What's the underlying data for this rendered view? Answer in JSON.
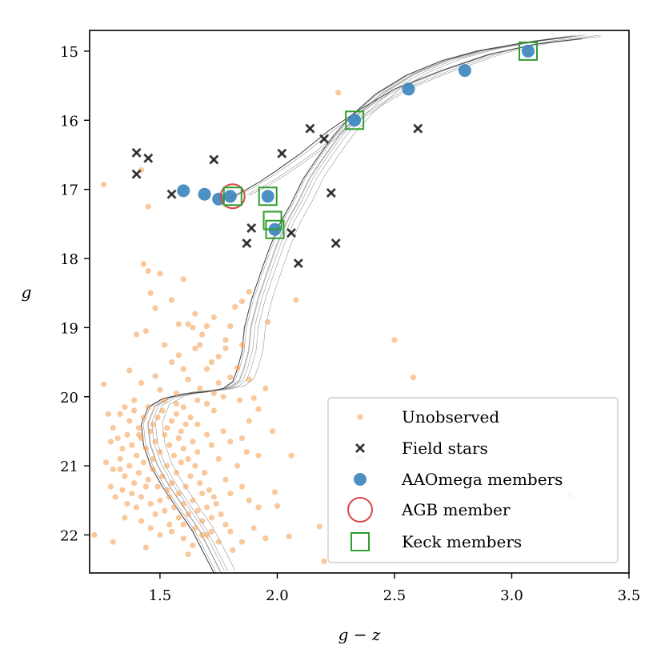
{
  "chart_data": {
    "type": "scatter",
    "title": "",
    "xlabel": "g − z",
    "ylabel": "g",
    "xlim": [
      1.2,
      3.5
    ],
    "ylim": [
      22.55,
      14.7
    ],
    "xticks": [
      1.5,
      2.0,
      2.5,
      3.0,
      3.5
    ],
    "yticks": [
      15,
      16,
      17,
      18,
      19,
      20,
      21,
      22
    ],
    "xtick_labels": [
      "1.5",
      "2.0",
      "2.5",
      "3.0",
      "3.5"
    ],
    "ytick_labels": [
      "15",
      "16",
      "17",
      "18",
      "19",
      "20",
      "21",
      "22"
    ],
    "grid": false,
    "legend_position": "lower-right",
    "colors": {
      "unobserved": "#f5a35c",
      "field": "#222222",
      "aaomega": "#3a84bd",
      "agb": "#d9464a",
      "keck": "#2e9e2e",
      "isochrone": "#444444"
    },
    "series": [
      {
        "name": "Unobserved",
        "marker": "dot",
        "points": [
          [
            1.26,
            16.93
          ],
          [
            1.42,
            16.72
          ],
          [
            1.45,
            17.25
          ],
          [
            1.43,
            18.08
          ],
          [
            1.45,
            18.18
          ],
          [
            1.46,
            18.5
          ],
          [
            1.5,
            18.22
          ],
          [
            1.55,
            18.6
          ],
          [
            1.6,
            18.3
          ],
          [
            1.62,
            18.95
          ],
          [
            1.65,
            18.8
          ],
          [
            1.7,
            18.98
          ],
          [
            1.73,
            18.85
          ],
          [
            1.8,
            18.98
          ],
          [
            1.82,
            18.7
          ],
          [
            1.85,
            18.62
          ],
          [
            1.88,
            18.48
          ],
          [
            1.96,
            18.92
          ],
          [
            2.08,
            18.6
          ],
          [
            2.26,
            15.6
          ],
          [
            1.4,
            19.1
          ],
          [
            1.44,
            19.05
          ],
          [
            1.52,
            19.25
          ],
          [
            1.58,
            19.4
          ],
          [
            1.65,
            19.3
          ],
          [
            1.72,
            19.5
          ],
          [
            1.78,
            19.3
          ],
          [
            1.85,
            19.25
          ],
          [
            1.78,
            19.18
          ],
          [
            1.68,
            19.1
          ],
          [
            1.7,
            19.6
          ],
          [
            1.6,
            19.6
          ],
          [
            1.55,
            19.5
          ],
          [
            1.48,
            19.7
          ],
          [
            1.42,
            19.8
          ],
          [
            1.37,
            19.62
          ],
          [
            1.5,
            19.9
          ],
          [
            1.62,
            19.75
          ],
          [
            1.75,
            19.8
          ],
          [
            1.88,
            19.75
          ],
          [
            1.9,
            20.02
          ],
          [
            1.95,
            19.88
          ],
          [
            1.92,
            20.18
          ],
          [
            1.98,
            20.5
          ],
          [
            2.5,
            19.18
          ],
          [
            2.58,
            19.72
          ],
          [
            1.26,
            19.82
          ],
          [
            1.57,
            19.95
          ],
          [
            1.67,
            19.88
          ],
          [
            1.77,
            20.0
          ],
          [
            1.84,
            20.05
          ],
          [
            1.88,
            20.35
          ],
          [
            1.73,
            20.2
          ],
          [
            1.7,
            20.1
          ],
          [
            1.28,
            20.25
          ],
          [
            1.3,
            20.45
          ],
          [
            1.33,
            20.25
          ],
          [
            1.35,
            20.15
          ],
          [
            1.37,
            20.35
          ],
          [
            1.39,
            20.2
          ],
          [
            1.41,
            20.45
          ],
          [
            1.43,
            20.3
          ],
          [
            1.45,
            20.15
          ],
          [
            1.47,
            20.4
          ],
          [
            1.49,
            20.3
          ],
          [
            1.51,
            20.2
          ],
          [
            1.53,
            20.45
          ],
          [
            1.55,
            20.35
          ],
          [
            1.57,
            20.25
          ],
          [
            1.59,
            20.5
          ],
          [
            1.61,
            20.4
          ],
          [
            1.63,
            20.3
          ],
          [
            1.32,
            20.6
          ],
          [
            1.34,
            20.75
          ],
          [
            1.36,
            20.55
          ],
          [
            1.38,
            20.7
          ],
          [
            1.4,
            20.85
          ],
          [
            1.42,
            20.6
          ],
          [
            1.44,
            20.75
          ],
          [
            1.46,
            20.5
          ],
          [
            1.48,
            20.65
          ],
          [
            1.5,
            20.8
          ],
          [
            1.52,
            20.55
          ],
          [
            1.54,
            20.7
          ],
          [
            1.56,
            20.85
          ],
          [
            1.58,
            20.6
          ],
          [
            1.6,
            20.75
          ],
          [
            1.62,
            20.9
          ],
          [
            1.64,
            20.65
          ],
          [
            1.66,
            20.8
          ],
          [
            1.27,
            20.95
          ],
          [
            1.3,
            21.05
          ],
          [
            1.33,
            20.9
          ],
          [
            1.35,
            21.15
          ],
          [
            1.37,
            21.0
          ],
          [
            1.39,
            21.25
          ],
          [
            1.41,
            21.1
          ],
          [
            1.43,
            20.95
          ],
          [
            1.45,
            21.2
          ],
          [
            1.47,
            21.05
          ],
          [
            1.49,
            21.3
          ],
          [
            1.51,
            21.15
          ],
          [
            1.53,
            21.0
          ],
          [
            1.55,
            21.25
          ],
          [
            1.57,
            21.1
          ],
          [
            1.59,
            20.95
          ],
          [
            1.61,
            21.3
          ],
          [
            1.63,
            21.15
          ],
          [
            1.65,
            21.0
          ],
          [
            1.67,
            21.25
          ],
          [
            1.69,
            21.1
          ],
          [
            1.71,
            21.35
          ],
          [
            1.29,
            21.3
          ],
          [
            1.31,
            21.45
          ],
          [
            1.34,
            21.35
          ],
          [
            1.36,
            21.55
          ],
          [
            1.38,
            21.4
          ],
          [
            1.4,
            21.6
          ],
          [
            1.42,
            21.45
          ],
          [
            1.44,
            21.3
          ],
          [
            1.46,
            21.55
          ],
          [
            1.48,
            21.7
          ],
          [
            1.5,
            21.5
          ],
          [
            1.52,
            21.65
          ],
          [
            1.54,
            21.45
          ],
          [
            1.56,
            21.6
          ],
          [
            1.58,
            21.75
          ],
          [
            1.6,
            21.55
          ],
          [
            1.62,
            21.7
          ],
          [
            1.64,
            21.5
          ],
          [
            1.66,
            21.65
          ],
          [
            1.68,
            21.8
          ],
          [
            1.7,
            21.6
          ],
          [
            1.72,
            21.75
          ],
          [
            1.74,
            21.55
          ],
          [
            1.76,
            21.7
          ],
          [
            1.78,
            21.85
          ],
          [
            1.42,
            21.8
          ],
          [
            1.46,
            21.9
          ],
          [
            1.5,
            22.0
          ],
          [
            1.55,
            21.95
          ],
          [
            1.6,
            22.05
          ],
          [
            1.65,
            21.9
          ],
          [
            1.7,
            22.0
          ],
          [
            1.75,
            22.1
          ],
          [
            1.8,
            21.95
          ],
          [
            1.85,
            22.1
          ],
          [
            1.9,
            21.9
          ],
          [
            1.95,
            22.05
          ],
          [
            1.22,
            22.0
          ],
          [
            1.3,
            22.1
          ],
          [
            1.44,
            22.18
          ],
          [
            1.62,
            22.28
          ],
          [
            1.81,
            22.22
          ],
          [
            2.0,
            21.58
          ],
          [
            1.99,
            21.38
          ],
          [
            2.06,
            20.85
          ],
          [
            2.05,
            22.02
          ],
          [
            2.18,
            21.88
          ],
          [
            2.2,
            22.38
          ],
          [
            2.35,
            20.88
          ],
          [
            2.65,
            20.75
          ],
          [
            2.73,
            20.8
          ],
          [
            2.85,
            20.8
          ],
          [
            3.25,
            21.42
          ],
          [
            1.77,
            20.5
          ],
          [
            1.8,
            20.65
          ],
          [
            1.75,
            20.9
          ],
          [
            1.83,
            21.0
          ],
          [
            1.87,
            20.8
          ],
          [
            1.78,
            21.2
          ],
          [
            1.85,
            21.3
          ],
          [
            1.88,
            21.5
          ],
          [
            1.92,
            21.6
          ],
          [
            1.85,
            20.6
          ],
          [
            1.92,
            20.85
          ],
          [
            1.8,
            21.4
          ],
          [
            1.73,
            21.45
          ],
          [
            1.68,
            21.4
          ],
          [
            1.66,
            20.4
          ],
          [
            1.7,
            20.55
          ],
          [
            1.72,
            20.7
          ],
          [
            1.58,
            21.4
          ],
          [
            1.54,
            21.85
          ],
          [
            1.35,
            21.75
          ],
          [
            1.33,
            21.05
          ],
          [
            1.29,
            20.65
          ],
          [
            1.39,
            20.05
          ],
          [
            1.52,
            20.05
          ],
          [
            1.57,
            20.1
          ],
          [
            1.6,
            20.15
          ],
          [
            1.66,
            20.05
          ],
          [
            1.73,
            19.95
          ],
          [
            1.8,
            19.72
          ],
          [
            1.83,
            19.58
          ],
          [
            1.75,
            19.42
          ],
          [
            1.67,
            19.25
          ],
          [
            1.64,
            19.0
          ],
          [
            1.58,
            18.95
          ],
          [
            1.48,
            18.72
          ],
          [
            1.41,
            20.55
          ],
          [
            1.47,
            20.9
          ],
          [
            1.53,
            21.35
          ],
          [
            1.6,
            21.85
          ],
          [
            1.64,
            22.15
          ],
          [
            1.68,
            22.0
          ],
          [
            1.72,
            21.95
          ]
        ]
      },
      {
        "name": "Field stars",
        "marker": "x",
        "points": [
          [
            1.4,
            16.47
          ],
          [
            1.45,
            16.55
          ],
          [
            1.4,
            16.78
          ],
          [
            1.55,
            17.07
          ],
          [
            1.73,
            16.57
          ],
          [
            2.02,
            16.48
          ],
          [
            2.14,
            16.12
          ],
          [
            2.2,
            16.27
          ],
          [
            2.6,
            16.12
          ],
          [
            2.23,
            17.05
          ],
          [
            1.89,
            17.56
          ],
          [
            1.87,
            17.78
          ],
          [
            2.06,
            17.63
          ],
          [
            2.25,
            17.78
          ],
          [
            2.09,
            18.07
          ]
        ]
      },
      {
        "name": "AAOmega members",
        "marker": "circle",
        "points": [
          [
            3.07,
            15.0
          ],
          [
            2.8,
            15.28
          ],
          [
            2.56,
            15.55
          ],
          [
            2.33,
            16.0
          ],
          [
            1.6,
            17.02
          ],
          [
            1.69,
            17.07
          ],
          [
            1.75,
            17.14
          ],
          [
            1.8,
            17.1
          ],
          [
            1.96,
            17.1
          ],
          [
            1.99,
            17.58
          ]
        ]
      },
      {
        "name": "AGB member",
        "marker": "open-circle",
        "points": [
          [
            1.81,
            17.1
          ]
        ]
      },
      {
        "name": "Keck members",
        "marker": "open-square",
        "points": [
          [
            3.07,
            15.0
          ],
          [
            2.33,
            16.0
          ],
          [
            1.81,
            17.1
          ],
          [
            1.96,
            17.1
          ],
          [
            1.98,
            17.45
          ],
          [
            1.99,
            17.58
          ]
        ]
      }
    ],
    "isochrones": {
      "rgb_upper": [
        [
          3.23,
          14.8
        ],
        [
          3.05,
          14.88
        ],
        [
          2.85,
          15.0
        ],
        [
          2.7,
          15.14
        ],
        [
          2.55,
          15.35
        ],
        [
          2.42,
          15.62
        ],
        [
          2.32,
          15.92
        ],
        [
          2.24,
          16.22
        ],
        [
          2.17,
          16.55
        ],
        [
          2.11,
          16.85
        ],
        [
          2.06,
          17.2
        ],
        [
          2.01,
          17.5
        ],
        [
          1.97,
          17.82
        ],
        [
          1.93,
          18.2
        ],
        [
          1.89,
          18.6
        ],
        [
          1.86,
          19.0
        ],
        [
          1.85,
          19.35
        ],
        [
          1.83,
          19.6
        ],
        [
          1.81,
          19.78
        ],
        [
          1.77,
          19.88
        ],
        [
          1.7,
          19.93
        ],
        [
          1.6,
          19.96
        ],
        [
          1.51,
          20.03
        ],
        [
          1.45,
          20.15
        ],
        [
          1.42,
          20.4
        ],
        [
          1.43,
          20.7
        ],
        [
          1.46,
          21.0
        ],
        [
          1.51,
          21.3
        ],
        [
          1.57,
          21.6
        ],
        [
          1.64,
          21.95
        ],
        [
          1.73,
          22.55
        ]
      ],
      "rgb_offsets": [
        0.0,
        0.015,
        0.03,
        0.045,
        0.06,
        0.075,
        0.09
      ],
      "agb_branch": [
        [
          3.3,
          14.82
        ],
        [
          3.1,
          14.9
        ],
        [
          2.9,
          15.05
        ],
        [
          2.7,
          15.28
        ],
        [
          2.5,
          15.55
        ],
        [
          2.35,
          15.85
        ],
        [
          2.22,
          16.15
        ],
        [
          2.1,
          16.48
        ],
        [
          2.0,
          16.72
        ],
        [
          1.93,
          16.88
        ],
        [
          1.86,
          17.02
        ],
        [
          1.8,
          17.12
        ]
      ],
      "agb_offsets": [
        0.0,
        0.04,
        0.08,
        0.12
      ]
    }
  }
}
